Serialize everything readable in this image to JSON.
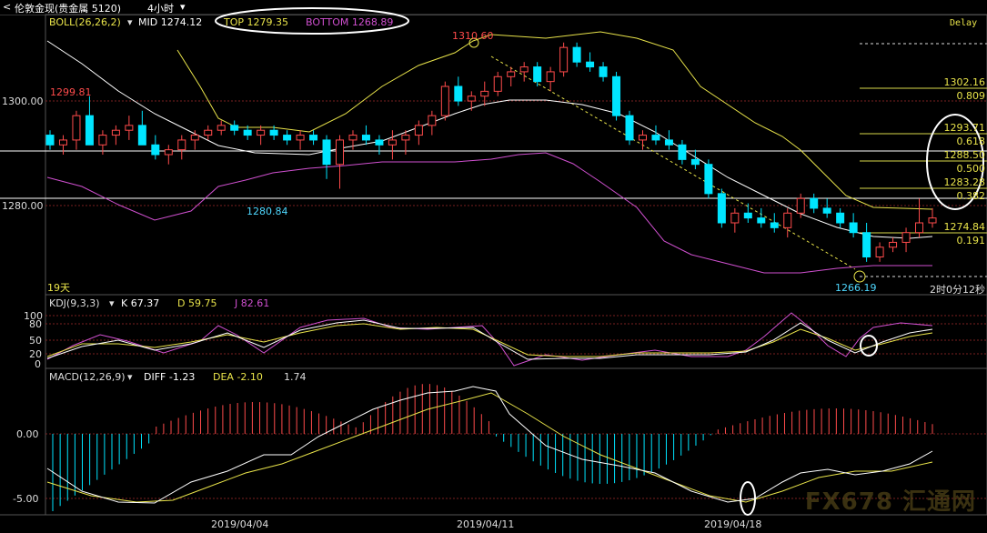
{
  "header": {
    "title": "伦敦金现(贵金属 5120)",
    "period": "4小时",
    "back_arrow": "<"
  },
  "boll": {
    "label": "BOLL(26,26,2)",
    "mid": "MID 1274.12",
    "top": "TOP 1279.35",
    "bottom": "BOTTOM 1268.89",
    "delay": "Delay"
  },
  "kdj": {
    "label": "KDJ(9,3,3)",
    "k": "K 67.37",
    "d": "D 59.75",
    "j": "J 82.61",
    "ticks": [
      "100",
      "80",
      "50",
      "20",
      "0"
    ]
  },
  "macd": {
    "label": "MACD(12,26,9)",
    "diff": "DIFF -1.23",
    "dea": "DEA -2.10",
    "macd": "1.74",
    "ticks": [
      "0.00",
      "-5.00"
    ]
  },
  "price_axis": [
    "1300.00",
    "1280.00"
  ],
  "annotations": {
    "high_1310": "1310.60",
    "p_1299": "1299.81",
    "p_1280": "1280.84",
    "low_1266": "1266.19",
    "p_1274": "1274.84",
    "countdown": "2时0分12秒",
    "days": "19天"
  },
  "fib": [
    {
      "price": "1302.16",
      "ratio": "0.809"
    },
    {
      "price": "1293.71",
      "ratio": "0.618"
    },
    {
      "price": "1288.50",
      "ratio": "0.500"
    },
    {
      "price": "1283.28",
      "ratio": "0.382"
    },
    {
      "price": "1274.84",
      "ratio": "0.191"
    }
  ],
  "dates": [
    "2019/04/04",
    "2019/04/11",
    "2019/04/18"
  ],
  "watermark": "FX678 汇通网",
  "colors": {
    "up": "#ff4b4b",
    "down": "#00e5ff",
    "mid": "#ffffff",
    "band": "#e8e34a",
    "bottom_band": "#d050d0"
  },
  "chart_data": {
    "type": "candlestick",
    "title": "伦敦金现(贵金属 5120) 4小时",
    "indicators": [
      "BOLL(26,26,2)",
      "KDJ(9,3,3)",
      "MACD(12,26,9)"
    ],
    "ylim": [
      1260,
      1316
    ],
    "candles_ohlc": [
      [
        1292,
        1293,
        1289,
        1290
      ],
      [
        1290,
        1292,
        1288,
        1291
      ],
      [
        1291,
        1297,
        1289,
        1296
      ],
      [
        1296,
        1300,
        1294,
        1290
      ],
      [
        1290,
        1293,
        1288,
        1292
      ],
      [
        1292,
        1294,
        1290,
        1293
      ],
      [
        1293,
        1296,
        1291,
        1294
      ],
      [
        1294,
        1297,
        1292,
        1290
      ],
      [
        1290,
        1292,
        1287,
        1288
      ],
      [
        1288,
        1290,
        1286,
        1289
      ],
      [
        1289,
        1292,
        1287,
        1291
      ],
      [
        1291,
        1293,
        1289,
        1292
      ],
      [
        1292,
        1294,
        1291,
        1293
      ],
      [
        1293,
        1295,
        1292,
        1294
      ],
      [
        1294,
        1295,
        1292,
        1293
      ],
      [
        1293,
        1294,
        1291,
        1292
      ],
      [
        1292,
        1294,
        1290,
        1293
      ],
      [
        1293,
        1294,
        1291,
        1292
      ],
      [
        1292,
        1293,
        1290,
        1291
      ],
      [
        1291,
        1293,
        1289,
        1292
      ],
      [
        1292,
        1293,
        1290,
        1291
      ],
      [
        1291,
        1292,
        1283,
        1286
      ],
      [
        1286,
        1292,
        1281,
        1291
      ],
      [
        1291,
        1293,
        1289,
        1292
      ],
      [
        1292,
        1294,
        1290,
        1291
      ],
      [
        1291,
        1292,
        1288,
        1290
      ],
      [
        1290,
        1293,
        1287,
        1291
      ],
      [
        1291,
        1293,
        1288,
        1292
      ],
      [
        1292,
        1295,
        1290,
        1294
      ],
      [
        1294,
        1297,
        1292,
        1296
      ],
      [
        1296,
        1303,
        1295,
        1302
      ],
      [
        1302,
        1304,
        1298,
        1299
      ],
      [
        1299,
        1301,
        1297,
        1300
      ],
      [
        1300,
        1303,
        1298,
        1301
      ],
      [
        1301,
        1305,
        1300,
        1304
      ],
      [
        1304,
        1306,
        1302,
        1305
      ],
      [
        1305,
        1307,
        1303,
        1306
      ],
      [
        1306,
        1307,
        1302,
        1303
      ],
      [
        1303,
        1306,
        1301,
        1305
      ],
      [
        1305,
        1311,
        1304,
        1310
      ],
      [
        1310,
        1311,
        1306,
        1307
      ],
      [
        1307,
        1309,
        1305,
        1306
      ],
      [
        1306,
        1307,
        1303,
        1304
      ],
      [
        1304,
        1305,
        1295,
        1296
      ],
      [
        1296,
        1297,
        1290,
        1291
      ],
      [
        1291,
        1293,
        1289,
        1292
      ],
      [
        1292,
        1294,
        1290,
        1291
      ],
      [
        1291,
        1293,
        1289,
        1290
      ],
      [
        1290,
        1291,
        1286,
        1287
      ],
      [
        1287,
        1289,
        1285,
        1286
      ],
      [
        1286,
        1287,
        1279,
        1280
      ],
      [
        1280,
        1281,
        1273,
        1274
      ],
      [
        1274,
        1277,
        1272,
        1276
      ],
      [
        1276,
        1278,
        1274,
        1275
      ],
      [
        1275,
        1277,
        1273,
        1274
      ],
      [
        1274,
        1276,
        1272,
        1273
      ],
      [
        1273,
        1277,
        1271,
        1276
      ],
      [
        1276,
        1280,
        1275,
        1279
      ],
      [
        1279,
        1280,
        1276,
        1277
      ],
      [
        1277,
        1279,
        1275,
        1276
      ],
      [
        1276,
        1277,
        1273,
        1274
      ],
      [
        1274,
        1276,
        1271,
        1272
      ],
      [
        1272,
        1274,
        1266,
        1267
      ],
      [
        1267,
        1270,
        1266,
        1269
      ],
      [
        1269,
        1271,
        1268,
        1270
      ],
      [
        1270,
        1273,
        1268,
        1272
      ],
      [
        1272,
        1279,
        1271,
        1274
      ],
      [
        1274,
        1277,
        1273,
        1275
      ]
    ]
  }
}
